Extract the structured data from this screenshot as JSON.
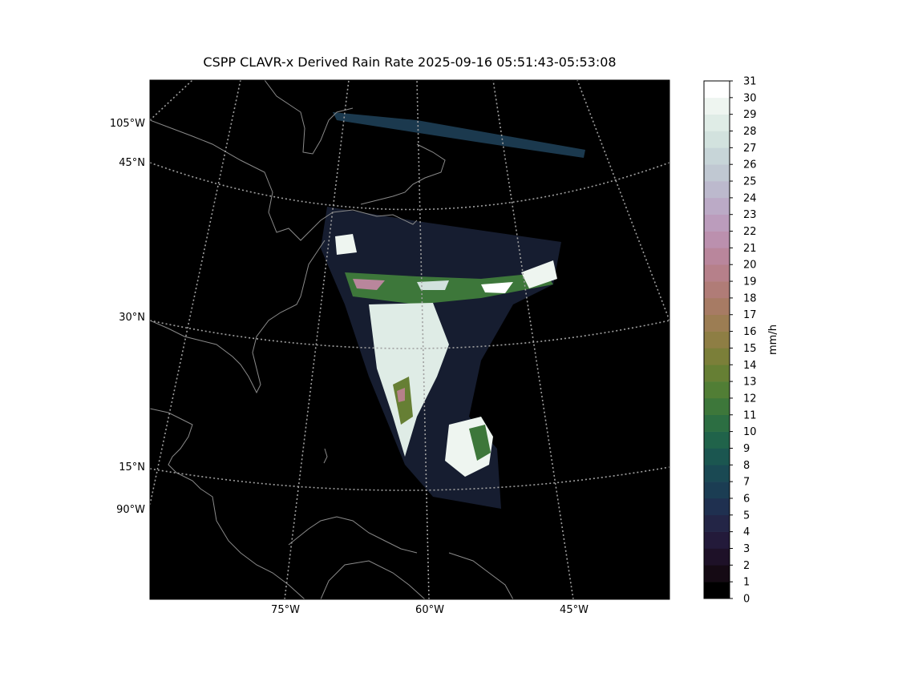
{
  "title": "CSPP CLAVR-x Derived Rain Rate 2025-09-16 05:51:43-05:53:08",
  "map": {
    "projection": "lambert-conformal",
    "background_color": "#000000",
    "coastline_color": "#8a8a8a",
    "graticule_color": "#a0a0a0",
    "graticule_style": "dotted",
    "lat_labels": [
      "45°N",
      "30°N",
      "15°N"
    ],
    "lon_labels_left": [
      "105°W",
      "90°W"
    ],
    "lon_labels_bottom": [
      "75°W",
      "60°W",
      "45°W"
    ]
  },
  "colorbar": {
    "label": "mm/h",
    "ticks": [
      "0",
      "1",
      "2",
      "3",
      "4",
      "5",
      "6",
      "7",
      "8",
      "9",
      "10",
      "11",
      "12",
      "13",
      "14",
      "15",
      "16",
      "17",
      "18",
      "19",
      "20",
      "21",
      "22",
      "23",
      "24",
      "25",
      "26",
      "27",
      "28",
      "29",
      "30",
      "31"
    ],
    "colors": [
      "#000000",
      "#150a14",
      "#1e1128",
      "#231a3a",
      "#232546",
      "#1f3050",
      "#1b3d53",
      "#1a4953",
      "#1b5650",
      "#20634a",
      "#2c6e42",
      "#3d773a",
      "#517e35",
      "#667f34",
      "#7b7f39",
      "#8e7e44",
      "#9c7d53",
      "#a77b64",
      "#b07c77",
      "#b6808a",
      "#b9869c",
      "#bb90ae",
      "#bb9cbc",
      "#bbaac6",
      "#bcb9cd",
      "#c0c8d2",
      "#c7d5d8",
      "#d2e2de",
      "#dfece6",
      "#eef5f0",
      "#ffffff"
    ]
  }
}
